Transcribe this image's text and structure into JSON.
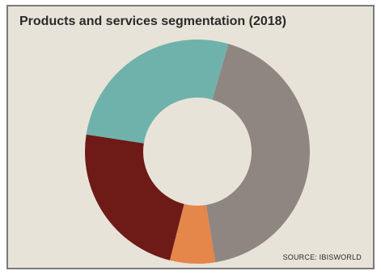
{
  "chart_data": {
    "type": "pie",
    "style": "donut",
    "title": "Products and services segmentation (2018)",
    "source": "SOURCE: IBISWORLD",
    "slices": [
      {
        "share": 43.0,
        "color": "#8f8681"
      },
      {
        "share": 6.5,
        "color": "#e5864a"
      },
      {
        "share": 23.5,
        "color": "#6e1a17"
      },
      {
        "share": 27.0,
        "color": "#6fb2ab"
      }
    ],
    "start_angle_deg": -74,
    "legend": "none"
  }
}
